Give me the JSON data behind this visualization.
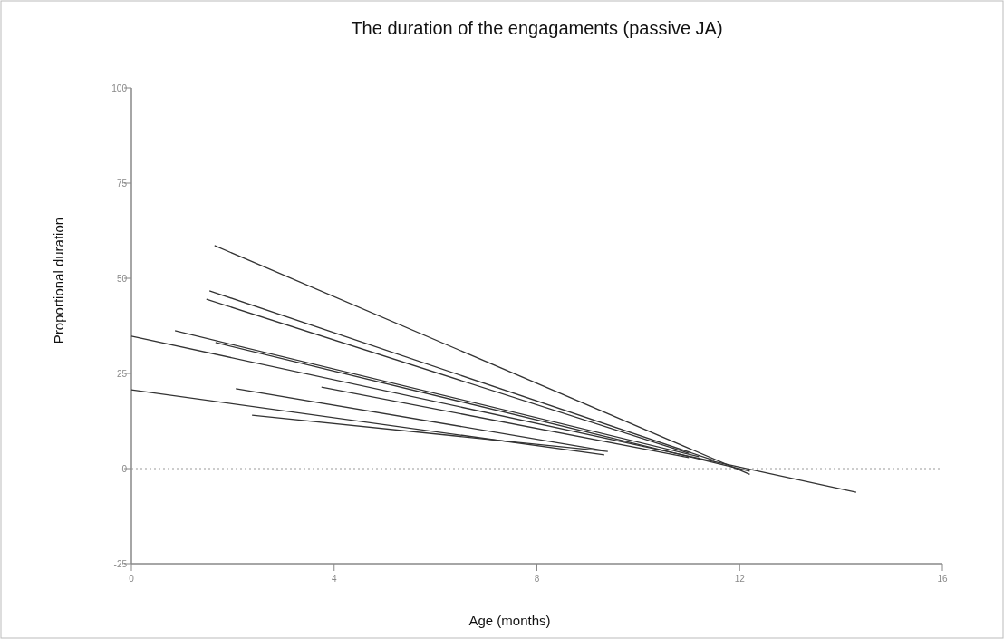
{
  "chart_data": {
    "type": "line",
    "title": "The duration of the engagaments (passive JA)",
    "xlabel": "Age (months)",
    "ylabel": "Proportional duration",
    "xlim": [
      0,
      16
    ],
    "xticks": [
      0,
      4,
      8,
      12,
      16
    ],
    "ylim": [
      -25,
      100
    ],
    "yticks": [
      -25,
      0,
      25,
      50,
      75,
      100
    ],
    "grid": false,
    "marker": "none",
    "line_style": "solid",
    "series": [
      {
        "color": "#333333",
        "x": [
          1.64,
          12.2
        ],
        "values": [
          58.6,
          -1.5
        ]
      },
      {
        "color": "#333333",
        "x": [
          1.54,
          11.5
        ],
        "values": [
          46.7,
          2.1
        ]
      },
      {
        "color": "#333333",
        "x": [
          1.48,
          11.0
        ],
        "values": [
          44.5,
          4.0
        ]
      },
      {
        "color": "#333333",
        "x": [
          0.86,
          11.2
        ],
        "values": [
          36.2,
          3.1
        ]
      },
      {
        "color": "#333333",
        "x": [
          0,
          14.3
        ],
        "values": [
          34.8,
          -6.2
        ]
      },
      {
        "color": "#333333",
        "x": [
          1.66,
          12.2
        ],
        "values": [
          33.1,
          -0.7
        ]
      },
      {
        "color": "#333333",
        "x": [
          3.75,
          11.0
        ],
        "values": [
          21.4,
          2.9
        ]
      },
      {
        "color": "#333333",
        "x": [
          0,
          9.33
        ],
        "values": [
          20.7,
          3.6
        ]
      },
      {
        "color": "#333333",
        "x": [
          2.06,
          9.3
        ],
        "values": [
          21,
          4.8
        ]
      },
      {
        "color": "#333333",
        "x": [
          2.38,
          9.4
        ],
        "values": [
          14,
          4.5
        ]
      }
    ],
    "ref_lines": [
      {
        "axis": "y",
        "value": 0,
        "color": "#999999",
        "line_style": "dotted"
      }
    ]
  }
}
